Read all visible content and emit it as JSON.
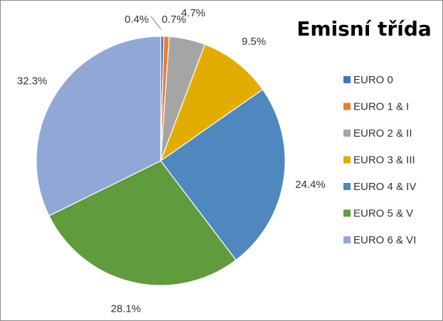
{
  "chart_data": {
    "type": "pie",
    "title": "Emisní třída",
    "legend_position": "right",
    "start_angle_deg": 0,
    "direction": "clockwise",
    "slices": [
      {
        "label": "EURO 0",
        "value": 0.4,
        "value_label": "0.4%",
        "color": "#4472c4"
      },
      {
        "label": "EURO 1 & I",
        "value": 0.7,
        "value_label": "0.7%",
        "color": "#ed7d31"
      },
      {
        "label": "EURO 2 & II",
        "value": 4.7,
        "value_label": "4.7%",
        "color": "#a5a5a5"
      },
      {
        "label": "EURO 3 & III",
        "value": 9.5,
        "value_label": "9.5%",
        "color": "#e3ac00"
      },
      {
        "label": "EURO 4 & IV",
        "value": 24.4,
        "value_label": "24.4%",
        "color": "#4e88bf"
      },
      {
        "label": "EURO 5 & V",
        "value": 28.1,
        "value_label": "28.1%",
        "color": "#609c3d"
      },
      {
        "label": "EURO 6 & VI",
        "value": 32.3,
        "value_label": "32.3%",
        "color": "#91a7d6"
      }
    ]
  }
}
